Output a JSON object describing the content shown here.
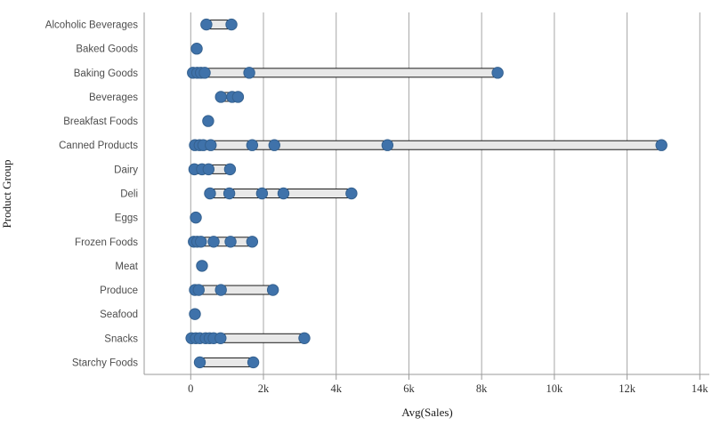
{
  "chart_data": {
    "type": "scatter",
    "subtype": "distribution-plot",
    "title": "",
    "xlabel": "Avg(Sales)",
    "ylabel": "Product Group",
    "grid": true,
    "legend": false,
    "xlim": [
      -1280,
      14260
    ],
    "x_ticks": [
      {
        "value": 0,
        "label": "0"
      },
      {
        "value": 2000,
        "label": "2k"
      },
      {
        "value": 4000,
        "label": "4k"
      },
      {
        "value": 6000,
        "label": "6k"
      },
      {
        "value": 8000,
        "label": "8k"
      },
      {
        "value": 10000,
        "label": "10k"
      },
      {
        "value": 12000,
        "label": "12k"
      },
      {
        "value": 14000,
        "label": "14k"
      }
    ],
    "categories": [
      "Alcoholic Beverages",
      "Baked Goods",
      "Baking Goods",
      "Beverages",
      "Breakfast Foods",
      "Canned Products",
      "Dairy",
      "Deli",
      "Eggs",
      "Frozen Foods",
      "Meat",
      "Produce",
      "Seafood",
      "Snacks",
      "Starchy Foods"
    ],
    "values": [
      [
        430,
        1120
      ],
      [
        165
      ],
      [
        60,
        180,
        280,
        385,
        1610,
        8440
      ],
      [
        830,
        1140,
        1300
      ],
      [
        480
      ],
      [
        115,
        245,
        345,
        550,
        1690,
        2300,
        5410,
        12945
      ],
      [
        100,
        310,
        490,
        1080
      ],
      [
        530,
        1060,
        1960,
        2550,
        4420
      ],
      [
        140
      ],
      [
        85,
        180,
        280,
        630,
        1095,
        1690
      ],
      [
        310
      ],
      [
        115,
        220,
        830,
        2260
      ],
      [
        115
      ],
      [
        20,
        140,
        250,
        410,
        520,
        630,
        820,
        3125
      ],
      [
        250,
        1720
      ]
    ],
    "colors": {
      "point_fill": "#3f72aa",
      "point_stroke": "#35618f",
      "bar_fill": "#e8e8e8",
      "bar_stroke": "#1a1a1a",
      "gridline": "#a6a6a6",
      "axis_line": "#999999",
      "category_label": "#4d4d4d",
      "tick_label": "#333333"
    }
  }
}
